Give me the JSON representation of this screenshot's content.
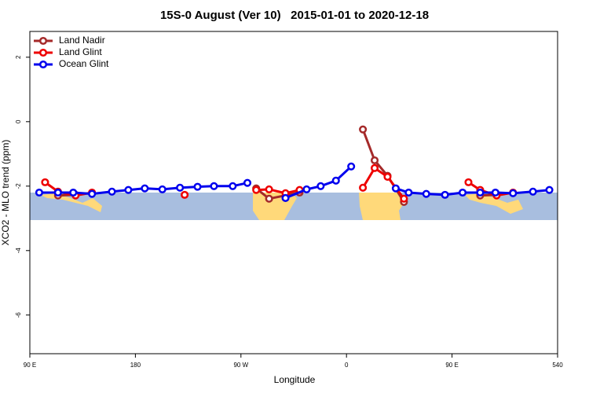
{
  "chart_data": {
    "type": "line",
    "title": "15S-0 August (Ver 10)   2015-01-01 to 2020-12-18",
    "x_label": "Longitude",
    "y_label": "XCO2 - MLO trend (ppm)",
    "xlim": [
      90,
      540
    ],
    "xticks": [
      {
        "value": 90,
        "label": "90 E"
      },
      180,
      {
        "value": 270,
        "label": "90 W"
      },
      {
        "value": 360,
        "label": "0"
      },
      {
        "value": 450,
        "label": "90 E"
      },
      540
    ],
    "ylim": [
      -7.2,
      2.8
    ],
    "yticks": [
      -6,
      -4,
      -2,
      0,
      2
    ],
    "legend": "top-left",
    "series": [
      {
        "name": "Land Nadir",
        "color": "#a52a2a",
        "x": [
          114,
          129,
          null,
          283,
          294,
          320,
          null,
          374,
          384,
          395,
          409,
          null,
          474,
          488
        ],
        "values": [
          -2.29,
          -2.27,
          null,
          -2.07,
          -2.39,
          -2.2,
          null,
          -0.24,
          -1.2,
          -1.68,
          -2.49,
          null,
          -2.29,
          -2.27
        ]
      },
      {
        "name": "Land Glint",
        "color": "#ee0000",
        "x": [
          103,
          114,
          129,
          143,
          null,
          222,
          null,
          283,
          294,
          308,
          320,
          null,
          374,
          384,
          395,
          409,
          null,
          464,
          474,
          488,
          502
        ],
        "values": [
          -1.88,
          -2.17,
          -2.29,
          -2.2,
          null,
          -2.27,
          null,
          -2.12,
          -2.1,
          -2.22,
          -2.12,
          null,
          -2.05,
          -1.44,
          -1.71,
          -2.39,
          null,
          -1.88,
          -2.12,
          -2.29,
          -2.2
        ]
      },
      {
        "name": "Ocean Glint",
        "color": "#0000ee",
        "x": [
          98,
          114,
          127,
          143,
          160,
          174,
          188,
          203,
          218,
          233,
          247,
          263,
          275.5,
          null,
          308,
          326,
          338,
          351,
          364,
          null,
          402,
          413,
          428,
          444,
          459,
          474,
          487,
          502,
          519,
          533
        ],
        "values": [
          -2.2,
          -2.2,
          -2.2,
          -2.24,
          -2.17,
          -2.12,
          -2.07,
          -2.1,
          -2.05,
          -2.02,
          -2.0,
          -2.0,
          -1.9,
          null,
          -2.37,
          -2.1,
          -2.0,
          -1.83,
          -1.39,
          null,
          -2.07,
          -2.2,
          -2.24,
          -2.27,
          -2.2,
          -2.2,
          -2.2,
          -2.22,
          -2.17,
          -2.12
        ]
      }
    ]
  }
}
